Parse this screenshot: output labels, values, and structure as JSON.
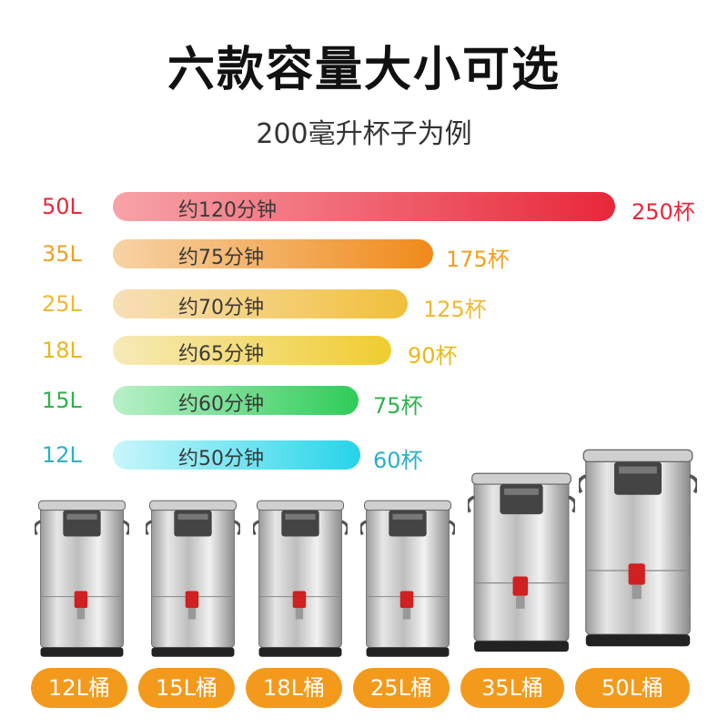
{
  "header": {
    "title": "六款容量大小可选",
    "subtitle": "200毫升杯子为例"
  },
  "rows": [
    {
      "capacity": "50L",
      "time": "约120分钟",
      "cups": "250杯",
      "color": "#e8273a"
    },
    {
      "capacity": "35L",
      "time": "约75分钟",
      "cups": "175杯",
      "color": "#f08a1a"
    },
    {
      "capacity": "25L",
      "time": "约70分钟",
      "cups": "125杯",
      "color": "#f0b830"
    },
    {
      "capacity": "18L",
      "time": "约65分钟",
      "cups": "90杯",
      "color": "#e8b81a"
    },
    {
      "capacity": "15L",
      "time": "约60分钟",
      "cups": "75杯",
      "color": "#2eb34a"
    },
    {
      "capacity": "12L",
      "time": "约50分钟",
      "cups": "60杯",
      "color": "#2ab0c8"
    }
  ],
  "labels": [
    "12L桶",
    "15L桶",
    "18L桶",
    "25L桶",
    "35L桶",
    "50L桶"
  ]
}
